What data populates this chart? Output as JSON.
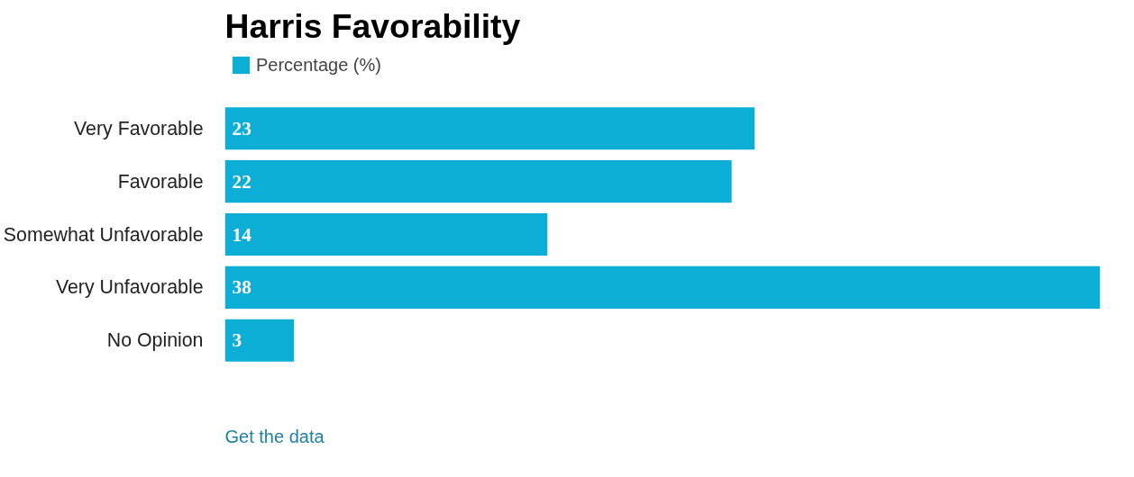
{
  "chart_data": {
    "type": "bar",
    "orientation": "horizontal",
    "title": "Harris Favorability",
    "categories": [
      "Very Favorable",
      "Favorable",
      "Somewhat Unfavorable",
      "Very Unfavorable",
      "No Opinion"
    ],
    "series": [
      {
        "name": "Percentage (%)",
        "color": "#0daed6",
        "values": [
          23,
          22,
          14,
          38,
          3
        ]
      }
    ],
    "data_labels": true,
    "legend": "top left",
    "grid": false,
    "annotations": [
      "Get the data"
    ]
  }
}
